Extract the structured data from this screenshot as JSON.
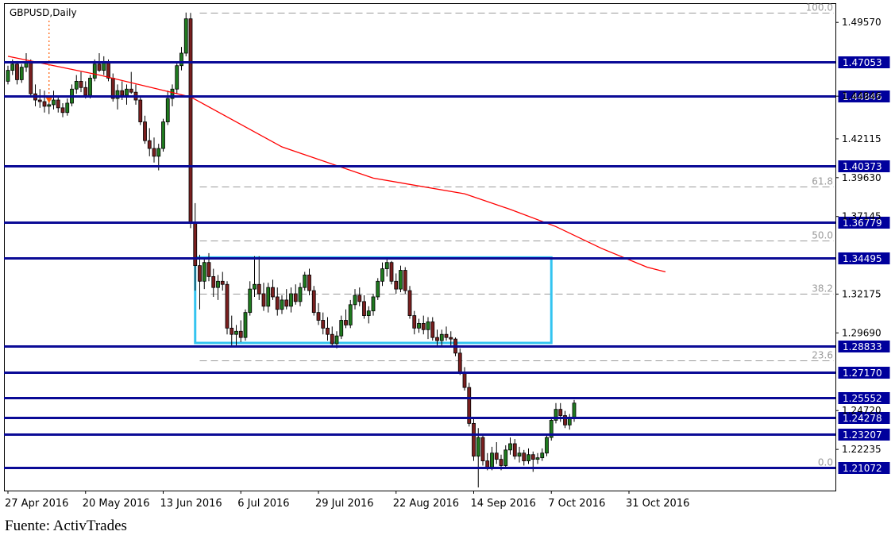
{
  "symbol": "GBPUSD,Daily",
  "source": "Fuente: ActivTrades",
  "colors": {
    "level_line": "#0a0a96",
    "moving_average": "#ff0000",
    "range_box": "#33c4f0",
    "fib": "#9a9a9a",
    "candle_up": "#1f7a1f",
    "candle_down": "#7a1f1f",
    "tag_bg": "#00009c",
    "tag_text": "#ffffff",
    "marker": "#ff5a00"
  },
  "chart_data": {
    "type": "candlestick",
    "x_tick_labels": [
      "27 Apr 2016",
      "20 May 2016",
      "13 Jun 2016",
      "6 Jul 2016",
      "29 Jul 2016",
      "22 Aug 2016",
      "14 Sep 2016",
      "7 Oct 2016",
      "31 Oct 2016"
    ],
    "x_tick_index": [
      0,
      17,
      34,
      51,
      68,
      85,
      102,
      119,
      136
    ],
    "y_tick_labels": [
      "1.49570",
      "1.44846",
      "1.42115",
      "1.39630",
      "1.37145",
      "1.32175",
      "1.29690",
      "1.24720",
      "1.22235"
    ],
    "ylim": [
      1.196,
      1.508
    ],
    "horizontal_levels": [
      "1.47053",
      "1.44846",
      "1.40373",
      "1.36779",
      "1.34495",
      "1.28833",
      "1.27170",
      "1.25552",
      "1.24278",
      "1.23207",
      "1.21072"
    ],
    "fibonacci": {
      "levels": [
        "100.0",
        "61.8",
        "50.0",
        "38.2",
        "23.6",
        "0.0"
      ],
      "high": 1.5018,
      "low": 1.2107,
      "start_index": 42
    },
    "consolidation_box": {
      "start_index": 41,
      "end_index": 119,
      "high": 1.3452,
      "low": 1.2905
    },
    "event_marker_index": 9,
    "moving_average": [
      [
        0,
        1.474
      ],
      [
        20,
        1.462
      ],
      [
        40,
        1.448
      ],
      [
        60,
        1.416
      ],
      [
        80,
        1.396
      ],
      [
        100,
        1.386
      ],
      [
        110,
        1.376
      ],
      [
        120,
        1.365
      ],
      [
        130,
        1.351
      ],
      [
        140,
        1.339
      ],
      [
        144,
        1.336
      ]
    ],
    "ohlc": [
      [
        1.458,
        1.468,
        1.456,
        1.465
      ],
      [
        1.465,
        1.472,
        1.462,
        1.469
      ],
      [
        1.469,
        1.471,
        1.456,
        1.459
      ],
      [
        1.459,
        1.469,
        1.457,
        1.467
      ],
      [
        1.467,
        1.476,
        1.464,
        1.47
      ],
      [
        1.47,
        1.472,
        1.448,
        1.45
      ],
      [
        1.45,
        1.456,
        1.442,
        1.446
      ],
      [
        1.446,
        1.453,
        1.441,
        1.445
      ],
      [
        1.445,
        1.452,
        1.438,
        1.442
      ],
      [
        1.442,
        1.449,
        1.437,
        1.443
      ],
      [
        1.443,
        1.452,
        1.44,
        1.446
      ],
      [
        1.446,
        1.448,
        1.438,
        1.441
      ],
      [
        1.441,
        1.444,
        1.435,
        1.438
      ],
      [
        1.438,
        1.447,
        1.436,
        1.444
      ],
      [
        1.444,
        1.456,
        1.442,
        1.453
      ],
      [
        1.453,
        1.462,
        1.45,
        1.458
      ],
      [
        1.458,
        1.464,
        1.451,
        1.454
      ],
      [
        1.454,
        1.458,
        1.447,
        1.449
      ],
      [
        1.449,
        1.462,
        1.447,
        1.46
      ],
      [
        1.46,
        1.472,
        1.458,
        1.469
      ],
      [
        1.469,
        1.476,
        1.464,
        1.465
      ],
      [
        1.465,
        1.474,
        1.462,
        1.47
      ],
      [
        1.47,
        1.472,
        1.458,
        1.46
      ],
      [
        1.46,
        1.463,
        1.445,
        1.447
      ],
      [
        1.447,
        1.456,
        1.44,
        1.452
      ],
      [
        1.452,
        1.458,
        1.446,
        1.449
      ],
      [
        1.449,
        1.456,
        1.443,
        1.453
      ],
      [
        1.453,
        1.464,
        1.45,
        1.451
      ],
      [
        1.451,
        1.456,
        1.443,
        1.446
      ],
      [
        1.446,
        1.449,
        1.43,
        1.432
      ],
      [
        1.432,
        1.436,
        1.418,
        1.42
      ],
      [
        1.42,
        1.428,
        1.41,
        1.415
      ],
      [
        1.415,
        1.422,
        1.406,
        1.41
      ],
      [
        1.41,
        1.418,
        1.401,
        1.415
      ],
      [
        1.415,
        1.434,
        1.413,
        1.432
      ],
      [
        1.432,
        1.452,
        1.43,
        1.447
      ],
      [
        1.447,
        1.456,
        1.442,
        1.453
      ],
      [
        1.453,
        1.47,
        1.45,
        1.468
      ],
      [
        1.468,
        1.48,
        1.465,
        1.476
      ],
      [
        1.476,
        1.502,
        1.474,
        1.498
      ],
      [
        1.498,
        1.5018,
        1.364,
        1.368
      ],
      [
        1.368,
        1.38,
        1.324,
        1.34
      ],
      [
        1.34,
        1.347,
        1.312,
        1.33
      ],
      [
        1.33,
        1.345,
        1.325,
        1.342
      ],
      [
        1.342,
        1.348,
        1.33,
        1.333
      ],
      [
        1.333,
        1.338,
        1.32,
        1.326
      ],
      [
        1.326,
        1.334,
        1.318,
        1.33
      ],
      [
        1.33,
        1.336,
        1.324,
        1.328
      ],
      [
        1.328,
        1.33,
        1.296,
        1.3
      ],
      [
        1.3,
        1.308,
        1.288,
        1.296
      ],
      [
        1.296,
        1.302,
        1.288,
        1.298
      ],
      [
        1.298,
        1.305,
        1.291,
        1.294
      ],
      [
        1.294,
        1.312,
        1.292,
        1.31
      ],
      [
        1.31,
        1.33,
        1.308,
        1.325
      ],
      [
        1.325,
        1.346,
        1.32,
        1.328
      ],
      [
        1.328,
        1.346,
        1.318,
        1.322
      ],
      [
        1.322,
        1.329,
        1.311,
        1.314
      ],
      [
        1.314,
        1.329,
        1.31,
        1.326
      ],
      [
        1.326,
        1.331,
        1.318,
        1.32
      ],
      [
        1.32,
        1.326,
        1.308,
        1.312
      ],
      [
        1.312,
        1.321,
        1.309,
        1.318
      ],
      [
        1.318,
        1.325,
        1.312,
        1.314
      ],
      [
        1.314,
        1.326,
        1.31,
        1.322
      ],
      [
        1.322,
        1.328,
        1.315,
        1.317
      ],
      [
        1.317,
        1.329,
        1.314,
        1.326
      ],
      [
        1.326,
        1.336,
        1.324,
        1.334
      ],
      [
        1.334,
        1.338,
        1.321,
        1.324
      ],
      [
        1.324,
        1.327,
        1.308,
        1.31
      ],
      [
        1.31,
        1.316,
        1.302,
        1.305
      ],
      [
        1.305,
        1.31,
        1.296,
        1.3
      ],
      [
        1.3,
        1.307,
        1.292,
        1.296
      ],
      [
        1.296,
        1.301,
        1.288,
        1.29
      ],
      [
        1.29,
        1.298,
        1.287,
        1.295
      ],
      [
        1.295,
        1.308,
        1.293,
        1.305
      ],
      [
        1.305,
        1.312,
        1.3,
        1.302
      ],
      [
        1.302,
        1.318,
        1.3,
        1.315
      ],
      [
        1.315,
        1.325,
        1.312,
        1.321
      ],
      [
        1.321,
        1.326,
        1.314,
        1.317
      ],
      [
        1.317,
        1.321,
        1.306,
        1.308
      ],
      [
        1.308,
        1.314,
        1.303,
        1.311
      ],
      [
        1.311,
        1.322,
        1.308,
        1.32
      ],
      [
        1.32,
        1.332,
        1.318,
        1.33
      ],
      [
        1.33,
        1.342,
        1.327,
        1.338
      ],
      [
        1.338,
        1.345,
        1.333,
        1.342
      ],
      [
        1.342,
        1.343,
        1.328,
        1.33
      ],
      [
        1.33,
        1.335,
        1.322,
        1.325
      ],
      [
        1.325,
        1.34,
        1.323,
        1.337
      ],
      [
        1.337,
        1.339,
        1.322,
        1.324
      ],
      [
        1.324,
        1.327,
        1.306,
        1.308
      ],
      [
        1.308,
        1.311,
        1.296,
        1.3
      ],
      [
        1.3,
        1.306,
        1.297,
        1.303
      ],
      [
        1.303,
        1.308,
        1.296,
        1.299
      ],
      [
        1.299,
        1.307,
        1.293,
        1.304
      ],
      [
        1.304,
        1.307,
        1.292,
        1.294
      ],
      [
        1.294,
        1.299,
        1.289,
        1.292
      ],
      [
        1.292,
        1.299,
        1.288,
        1.296
      ],
      [
        1.296,
        1.301,
        1.292,
        1.294
      ],
      [
        1.294,
        1.298,
        1.289,
        1.293
      ],
      [
        1.293,
        1.294,
        1.282,
        1.284
      ],
      [
        1.284,
        1.287,
        1.27,
        1.272
      ],
      [
        1.272,
        1.275,
        1.26,
        1.262
      ],
      [
        1.262,
        1.265,
        1.237,
        1.239
      ],
      [
        1.239,
        1.242,
        1.215,
        1.218
      ],
      [
        1.218,
        1.236,
        1.198,
        1.23
      ],
      [
        1.23,
        1.232,
        1.212,
        1.215
      ],
      [
        1.215,
        1.22,
        1.209,
        1.211
      ],
      [
        1.211,
        1.224,
        1.209,
        1.22
      ],
      [
        1.22,
        1.227,
        1.213,
        1.216
      ],
      [
        1.216,
        1.219,
        1.209,
        1.212
      ],
      [
        1.212,
        1.225,
        1.21,
        1.222
      ],
      [
        1.222,
        1.23,
        1.219,
        1.226
      ],
      [
        1.226,
        1.229,
        1.216,
        1.218
      ],
      [
        1.218,
        1.224,
        1.214,
        1.22
      ],
      [
        1.22,
        1.222,
        1.212,
        1.215
      ],
      [
        1.215,
        1.223,
        1.213,
        1.219
      ],
      [
        1.219,
        1.221,
        1.208,
        1.216
      ],
      [
        1.216,
        1.22,
        1.213,
        1.217
      ],
      [
        1.217,
        1.223,
        1.215,
        1.22
      ],
      [
        1.22,
        1.232,
        1.218,
        1.23
      ],
      [
        1.23,
        1.243,
        1.228,
        1.241
      ],
      [
        1.241,
        1.252,
        1.239,
        1.248
      ],
      [
        1.248,
        1.252,
        1.24,
        1.244
      ],
      [
        1.244,
        1.247,
        1.236,
        1.238
      ],
      [
        1.238,
        1.245,
        1.235,
        1.242
      ],
      [
        1.242,
        1.254,
        1.24,
        1.252
      ]
    ]
  }
}
